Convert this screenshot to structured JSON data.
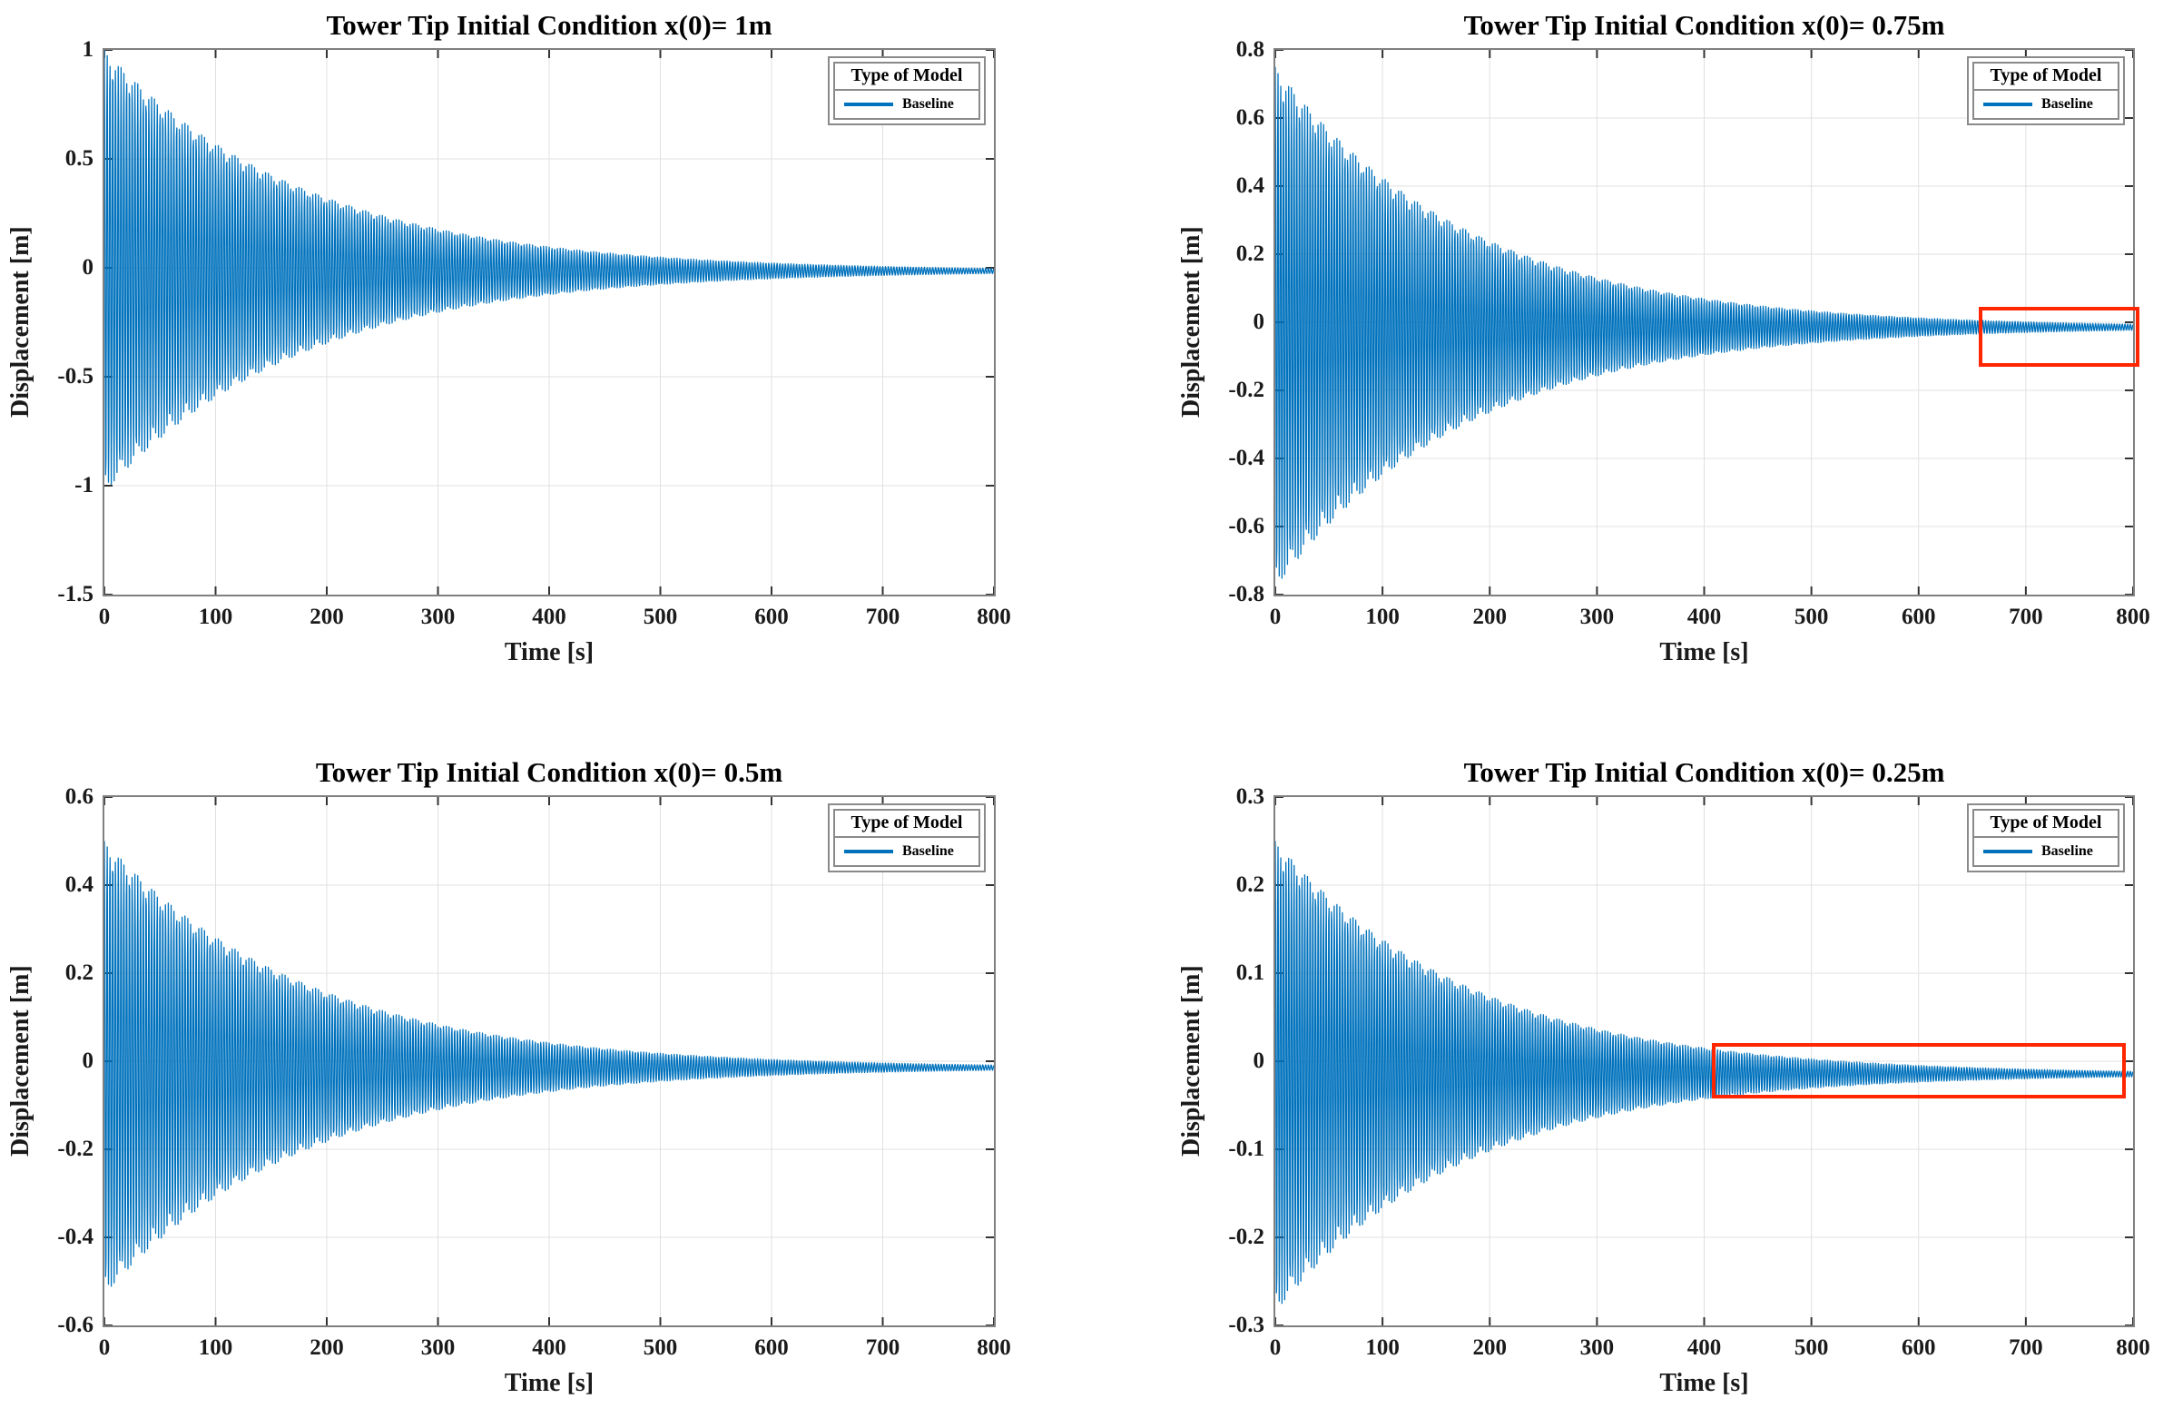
{
  "figure": {
    "background": "#FFFFFF",
    "rows": 2,
    "cols": 2
  },
  "colors": {
    "series": "#0072BD",
    "grid": "#E0E0E0",
    "frame": "#808080",
    "tick": "#333333",
    "text": "#1A1A1A",
    "annotation": "#FF2600",
    "legend_border": "#8A8A8A"
  },
  "chart_data": [
    {
      "type": "line",
      "title": "Tower Tip Initial Condition x(0)= 1m",
      "xlabel": "Time [s]",
      "ylabel": "Displacement [m]",
      "xlim": [
        0,
        800
      ],
      "ylim": [
        -1.5,
        1
      ],
      "xticks": [
        0,
        100,
        200,
        300,
        400,
        500,
        600,
        700,
        800
      ],
      "xtick_labels": [
        "0",
        "100",
        "200",
        "300",
        "400",
        "500",
        "600",
        "700",
        "800"
      ],
      "yticks": [
        1,
        0.5,
        0,
        -0.5,
        -1,
        -1.5
      ],
      "ytick_labels": [
        "1",
        "0.5",
        "0",
        "-0.5",
        "-1",
        "-1.5"
      ],
      "grid": true,
      "legend": {
        "title": "Type of Model",
        "entries": [
          "Baseline"
        ],
        "position": "top-right"
      },
      "series": [
        {
          "name": "Baseline",
          "model": "damped_free_vibration",
          "initial_displacement_m": 1.0,
          "peak_negative_displacement_m": -1.03,
          "decay_time_constant_s": 180,
          "oscillation_period_s": 2.5,
          "steady_state_offset_m": -0.015
        }
      ],
      "annotation_box": null
    },
    {
      "type": "line",
      "title": "Tower Tip Initial Condition x(0)= 0.75m",
      "xlabel": "Time [s]",
      "ylabel": "Displacement [m]",
      "xlim": [
        0,
        800
      ],
      "ylim": [
        -0.8,
        0.8
      ],
      "xticks": [
        0,
        100,
        200,
        300,
        400,
        500,
        600,
        700,
        800
      ],
      "xtick_labels": [
        "0",
        "100",
        "200",
        "300",
        "400",
        "500",
        "600",
        "700",
        "800"
      ],
      "yticks": [
        0.8,
        0.6,
        0.4,
        0.2,
        0,
        -0.2,
        -0.4,
        -0.6,
        -0.8
      ],
      "ytick_labels": [
        "0.8",
        "0.6",
        "0.4",
        "0.2",
        "0",
        "-0.2",
        "-0.4",
        "-0.6",
        "-0.8"
      ],
      "grid": true,
      "legend": {
        "title": "Type of Model",
        "entries": [
          "Baseline"
        ],
        "position": "top-right"
      },
      "series": [
        {
          "name": "Baseline",
          "model": "damped_free_vibration",
          "initial_displacement_m": 0.75,
          "peak_negative_displacement_m": -0.78,
          "decay_time_constant_s": 180,
          "oscillation_period_s": 2.5,
          "steady_state_offset_m": -0.015
        }
      ],
      "annotation_box": {
        "t_range": [
          656,
          806
        ],
        "displacement_range": [
          0.045,
          -0.131
        ]
      }
    },
    {
      "type": "line",
      "title": "Tower Tip Initial Condition x(0)= 0.5m",
      "xlabel": "Time [s]",
      "ylabel": "Displacement [m]",
      "xlim": [
        0,
        800
      ],
      "ylim": [
        -0.6,
        0.6
      ],
      "xticks": [
        0,
        100,
        200,
        300,
        400,
        500,
        600,
        700,
        800
      ],
      "xtick_labels": [
        "0",
        "100",
        "200",
        "300",
        "400",
        "500",
        "600",
        "700",
        "800"
      ],
      "yticks": [
        0.6,
        0.4,
        0.2,
        0,
        -0.2,
        -0.4,
        -0.6
      ],
      "ytick_labels": [
        "0.6",
        "0.4",
        "0.2",
        "0",
        "-0.2",
        "-0.4",
        "-0.6"
      ],
      "grid": true,
      "legend": {
        "title": "Type of Model",
        "entries": [
          "Baseline"
        ],
        "position": "top-right"
      },
      "series": [
        {
          "name": "Baseline",
          "model": "damped_free_vibration",
          "initial_displacement_m": 0.5,
          "peak_negative_displacement_m": -0.53,
          "decay_time_constant_s": 180,
          "oscillation_period_s": 2.5,
          "steady_state_offset_m": -0.015
        }
      ],
      "annotation_box": null
    },
    {
      "type": "line",
      "title": "Tower Tip Initial Condition x(0)= 0.25m",
      "xlabel": "Time [s]",
      "ylabel": "Displacement [m]",
      "xlim": [
        0,
        800
      ],
      "ylim": [
        -0.3,
        0.3
      ],
      "xticks": [
        0,
        100,
        200,
        300,
        400,
        500,
        600,
        700,
        800
      ],
      "xtick_labels": [
        "0",
        "100",
        "200",
        "300",
        "400",
        "500",
        "600",
        "700",
        "800"
      ],
      "yticks": [
        0.3,
        0.2,
        0.1,
        0,
        -0.1,
        -0.2,
        -0.3
      ],
      "ytick_labels": [
        "0.3",
        "0.2",
        "0.1",
        "0",
        "-0.1",
        "-0.2",
        "-0.3"
      ],
      "grid": true,
      "legend": {
        "title": "Type of Model",
        "entries": [
          "Baseline"
        ],
        "position": "top-right"
      },
      "series": [
        {
          "name": "Baseline",
          "model": "damped_free_vibration",
          "initial_displacement_m": 0.25,
          "peak_negative_displacement_m": -0.285,
          "decay_time_constant_s": 180,
          "oscillation_period_s": 2.5,
          "steady_state_offset_m": -0.015
        }
      ],
      "annotation_box": {
        "t_range": [
          407,
          793
        ],
        "displacement_range": [
          0.021,
          -0.042
        ]
      }
    }
  ]
}
